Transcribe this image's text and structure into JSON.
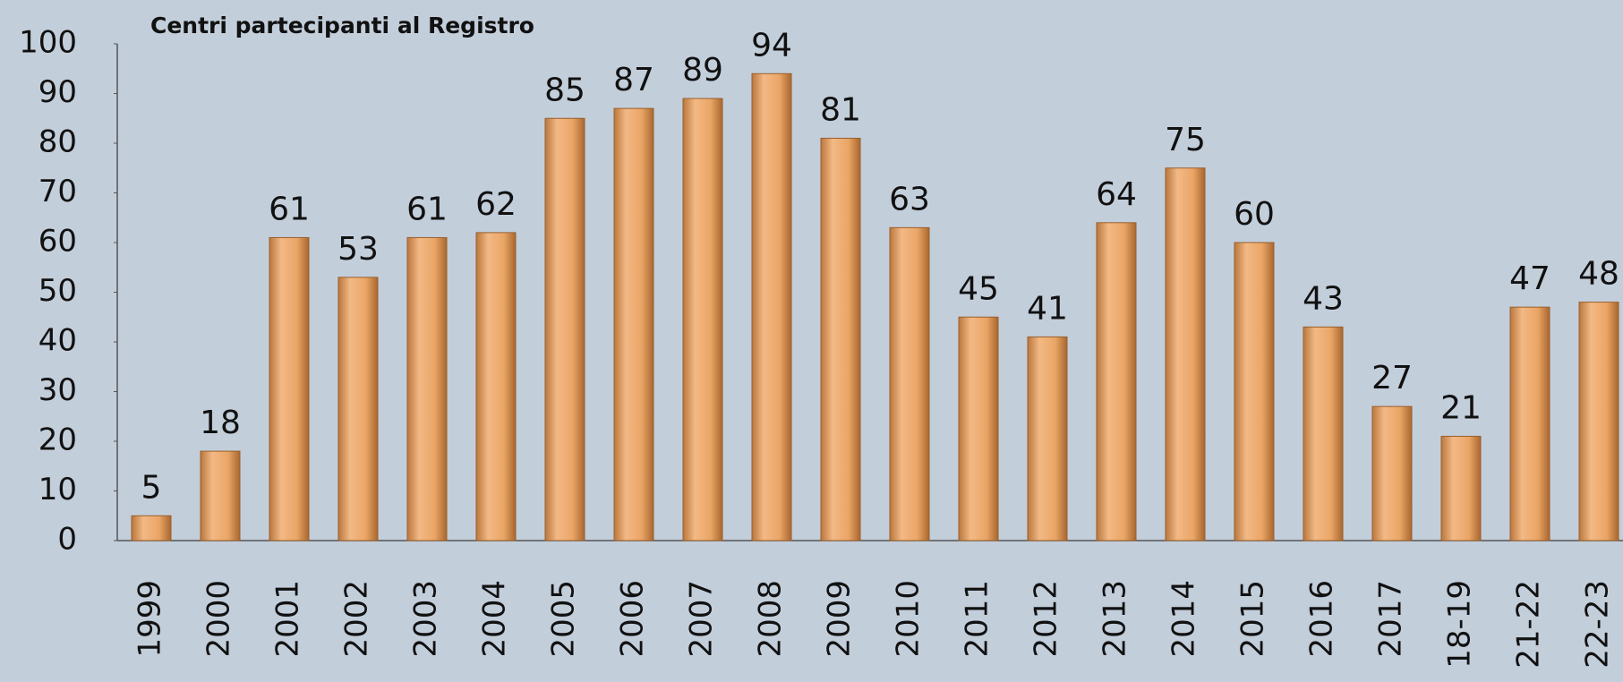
{
  "chart_data": {
    "type": "bar",
    "title": "Centri partecipanti al Registro",
    "categories": [
      "1999",
      "2000",
      "2001",
      "2002",
      "2003",
      "2004",
      "2005",
      "2006",
      "2007",
      "2008",
      "2009",
      "2010",
      "2011",
      "2012",
      "2013",
      "2014",
      "2015",
      "2016",
      "2017",
      "18-19",
      "21-22",
      "22-23"
    ],
    "values": [
      5,
      18,
      61,
      53,
      61,
      62,
      85,
      87,
      89,
      94,
      81,
      63,
      45,
      41,
      64,
      75,
      60,
      43,
      27,
      21,
      47,
      48
    ],
    "color": "#e8a062",
    "ylim": [
      0,
      100
    ],
    "yticks": [
      0,
      10,
      20,
      30,
      40,
      50,
      60,
      70,
      80,
      90,
      100
    ],
    "grid": false
  }
}
